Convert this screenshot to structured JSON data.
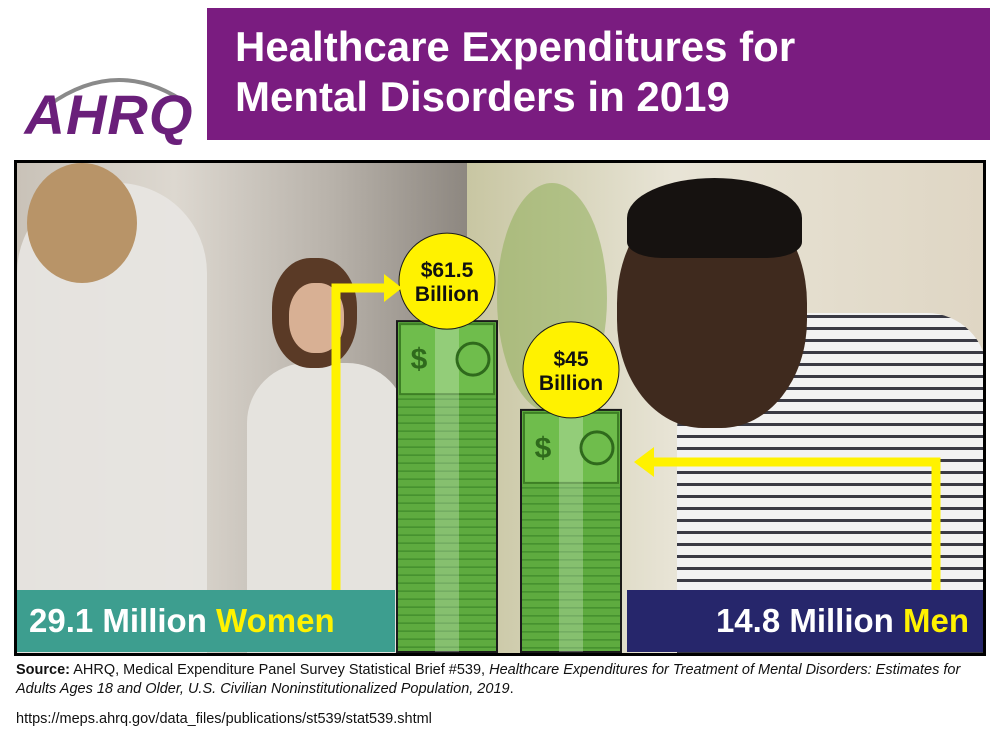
{
  "brand": {
    "logo_text": "AHRQ",
    "color": "#6a1f7a"
  },
  "title": {
    "line1": "Healthcare Expenditures for",
    "line2": "Mental Disorders in 2019",
    "background": "#7a1c80"
  },
  "chart_data": {
    "type": "bar",
    "categories": [
      "Women",
      "Men"
    ],
    "values": [
      61.5,
      45
    ],
    "value_labels": [
      "$61.5 Billion",
      "$45 Billion"
    ],
    "unit": "Billion USD",
    "population_labels": [
      "29.1 Million Women",
      "14.8 Million Men"
    ],
    "colors": {
      "bar": "#5eab3f",
      "bubble": "#fff200",
      "arrow": "#fff200"
    }
  },
  "labels": {
    "women_number": "29.1 Million",
    "women_word": "Women",
    "men_number": "14.8 Million",
    "men_word": "Men",
    "women_color": "#3d9e8f",
    "men_color": "#26266b",
    "highlight_color": "#fff200"
  },
  "bubbles": {
    "women_amount": "$61.5",
    "women_unit": "Billion",
    "men_amount": "$45",
    "men_unit": "Billion"
  },
  "source": {
    "prefix": "Source:",
    "text": "AHRQ, Medical Expenditure Panel Survey Statistical Brief #539,",
    "italic": "Healthcare Expenditures for Treatment of Mental Disorders: Estimates for Adults Ages 18 and Older, U.S. Civilian Noninstitutionalized Population, 2019",
    "suffix": ".",
    "url": "https://meps.ahrq.gov/data_files/publications/st539/stat539.shtml"
  }
}
